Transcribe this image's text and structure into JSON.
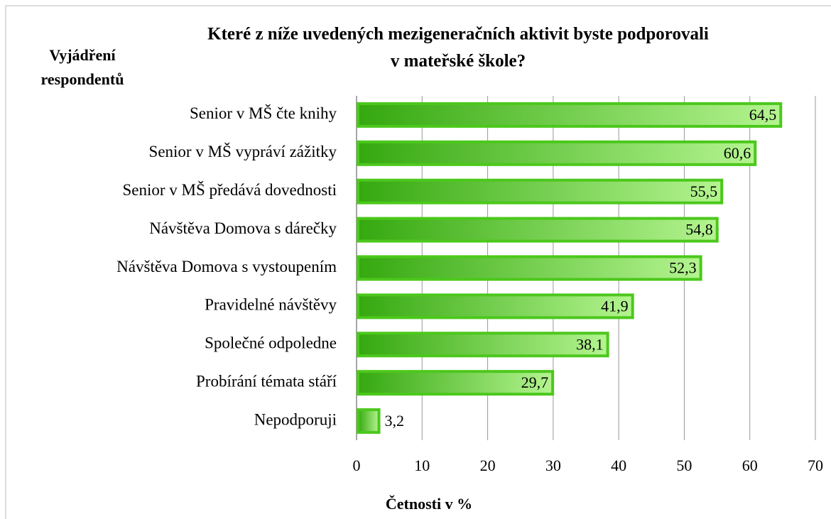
{
  "chart_data": {
    "type": "bar",
    "orientation": "horizontal",
    "title": [
      "Které z níže uvedených mezigeneračních aktivit byste podporovali",
      "v mateřské škole?"
    ],
    "y_label": [
      "Vyjádření",
      "respondentů"
    ],
    "x_label": "Četnosti v %",
    "categories": [
      "Senior v MŠ čte knihy",
      "Senior v MŠ vypráví zážitky",
      "Senior v MŠ předává dovednosti",
      "Návštěva Domova s dárečky",
      "Návštěva Domova s vystoupením",
      "Pravidelné návštěvy",
      "Společné odpoledne",
      "Probírání témata stáří",
      "Nepodporuji"
    ],
    "values": [
      64.5,
      60.6,
      55.5,
      54.8,
      52.3,
      41.9,
      38.1,
      29.7,
      3.2
    ],
    "value_labels": [
      "64,5",
      "60,6",
      "55,5",
      "54,8",
      "52,3",
      "41,9",
      "38,1",
      "29,7",
      "3,2"
    ],
    "color": "#4cc81c",
    "xlim": [
      0,
      70
    ],
    "xticks": [
      0,
      10,
      20,
      30,
      40,
      50,
      60,
      70
    ],
    "grid": true
  }
}
